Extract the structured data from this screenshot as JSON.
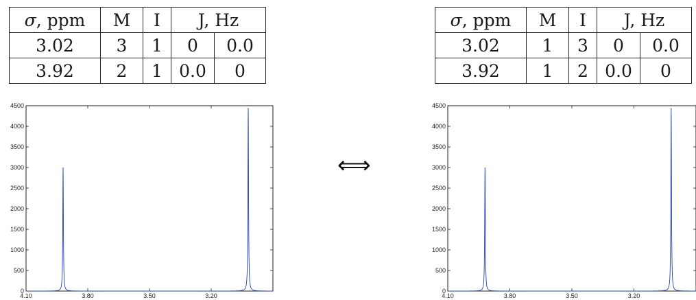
{
  "equivalence_symbol": "⟺",
  "tables": [
    {
      "header": {
        "sigma_symbol": "σ",
        "sigma_unit": ", ppm",
        "m": "M",
        "i": "I",
        "j": "J, Hz"
      },
      "rows": [
        {
          "shift": "3.02",
          "m": "3",
          "i": "1",
          "j1": "0",
          "j2": "0.0"
        },
        {
          "shift": "3.92",
          "m": "2",
          "i": "1",
          "j1": "0.0",
          "j2": "0"
        }
      ]
    },
    {
      "header": {
        "sigma_symbol": "σ",
        "sigma_unit": ", ppm",
        "m": "M",
        "i": "I",
        "j": "J, Hz"
      },
      "rows": [
        {
          "shift": "3.02",
          "m": "1",
          "i": "3",
          "j1": "0",
          "j2": "0.0"
        },
        {
          "shift": "3.92",
          "m": "1",
          "i": "2",
          "j1": "0.0",
          "j2": "0"
        }
      ]
    }
  ],
  "chart_data": [
    {
      "type": "line",
      "title": "",
      "xlabel": "",
      "ylabel": "",
      "x_reversed": true,
      "xlim": [
        4.1,
        2.9
      ],
      "ylim": [
        0,
        4500
      ],
      "x_ticks": [
        4.1,
        3.8,
        3.5,
        3.2
      ],
      "x_tick_labels": [
        "4.10",
        "3.80",
        "3.50",
        "3.20"
      ],
      "y_ticks": [
        0,
        500,
        1000,
        1500,
        2000,
        2500,
        3000,
        3500,
        4000,
        4500
      ],
      "y_tick_labels": [
        "0",
        "500",
        "1000",
        "1500",
        "2000",
        "2500",
        "3000",
        "3500",
        "4000",
        "4500"
      ],
      "grid": false,
      "series_color": "#1f3fb0",
      "peaks": [
        {
          "x": 3.92,
          "y": 3000
        },
        {
          "x": 3.02,
          "y": 4450
        }
      ]
    },
    {
      "type": "line",
      "title": "",
      "xlabel": "",
      "ylabel": "",
      "x_reversed": true,
      "xlim": [
        4.1,
        2.9
      ],
      "ylim": [
        0,
        4500
      ],
      "x_ticks": [
        4.1,
        3.8,
        3.5,
        3.2
      ],
      "x_tick_labels": [
        "4.10",
        "3.80",
        "3.50",
        "3.20"
      ],
      "y_ticks": [
        0,
        500,
        1000,
        1500,
        2000,
        2500,
        3000,
        3500,
        4000,
        4500
      ],
      "y_tick_labels": [
        "0",
        "500",
        "1000",
        "1500",
        "2000",
        "2500",
        "3000",
        "3500",
        "4000",
        "4500"
      ],
      "grid": false,
      "series_color": "#1f3fb0",
      "peaks": [
        {
          "x": 3.92,
          "y": 3000
        },
        {
          "x": 3.02,
          "y": 4450
        }
      ]
    }
  ]
}
